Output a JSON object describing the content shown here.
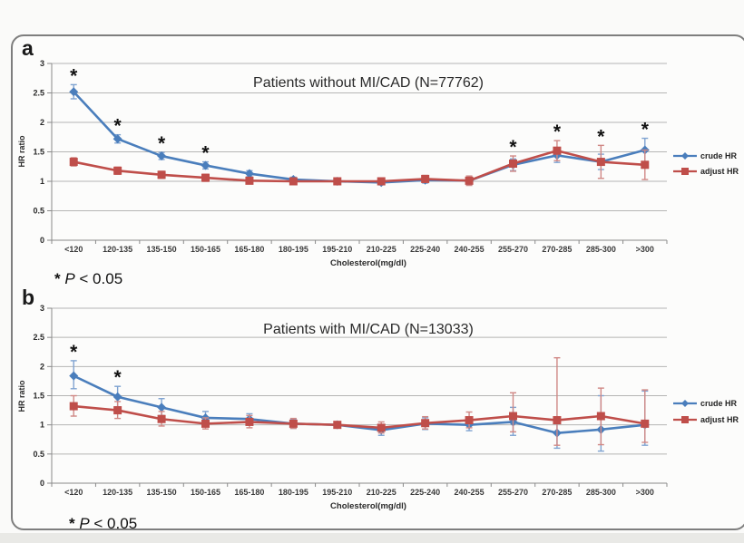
{
  "page": {
    "panel_a_label": "a",
    "panel_b_label": "b"
  },
  "colors": {
    "crude_line": "#4a7ebc",
    "crude_errbar": "#7fa3d1",
    "adjust_line": "#bf4e4a",
    "adjust_errbar": "#d08885",
    "gridline": "#b5b5b4",
    "axis": "#8a8a8a",
    "text": "#2a2a2a"
  },
  "chart_data": [
    {
      "id": "a",
      "type": "line",
      "title": "Patients without MI/CAD (N=77762)",
      "xlabel": "Cholesterol(mg/dl)",
      "ylabel": "HR ratio",
      "footnote": "* P < 0.05",
      "ylim": [
        0,
        3
      ],
      "yticks": [
        0,
        0.5,
        1,
        1.5,
        2,
        2.5,
        3
      ],
      "grid": true,
      "legend_position": "right",
      "categories": [
        "<120",
        "120-135",
        "135-150",
        "150-165",
        "165-180",
        "180-195",
        "195-210",
        "210-225",
        "225-240",
        "240-255",
        "255-270",
        "270-285",
        "285-300",
        ">300"
      ],
      "significant_categories": [
        "<120",
        "120-135",
        "135-150",
        "150-165",
        "255-270",
        "270-285",
        "285-300",
        ">300"
      ],
      "series": [
        {
          "name": "crude HR",
          "color": "#4a7ebc",
          "errbar_color": "#7fa3d1",
          "marker": "diamond",
          "values": [
            2.52,
            1.72,
            1.43,
            1.27,
            1.13,
            1.03,
            1.0,
            0.98,
            1.02,
            1.01,
            1.28,
            1.44,
            1.33,
            1.53
          ],
          "err_low": [
            2.4,
            1.65,
            1.37,
            1.21,
            1.08,
            0.99,
            0.97,
            0.94,
            0.97,
            0.95,
            1.18,
            1.32,
            1.2,
            1.33
          ],
          "err_high": [
            2.64,
            1.79,
            1.49,
            1.33,
            1.18,
            1.07,
            1.03,
            1.02,
            1.07,
            1.07,
            1.38,
            1.56,
            1.46,
            1.73
          ]
        },
        {
          "name": "adjust HR",
          "color": "#bf4e4a",
          "errbar_color": "#d08885",
          "marker": "square",
          "values": [
            1.33,
            1.18,
            1.11,
            1.06,
            1.01,
            1.0,
            1.0,
            1.0,
            1.04,
            1.01,
            1.3,
            1.52,
            1.33,
            1.28
          ],
          "err_low": [
            1.26,
            1.12,
            1.05,
            1.0,
            0.96,
            0.95,
            0.96,
            0.95,
            0.98,
            0.93,
            1.17,
            1.35,
            1.05,
            1.03
          ],
          "err_high": [
            1.4,
            1.24,
            1.17,
            1.12,
            1.06,
            1.05,
            1.04,
            1.05,
            1.1,
            1.09,
            1.43,
            1.69,
            1.61,
            1.53
          ]
        }
      ]
    },
    {
      "id": "b",
      "type": "line",
      "title": "Patients with MI/CAD (N=13033)",
      "xlabel": "Cholesterol(mg/dl)",
      "ylabel": "HR ratio",
      "footnote": "* P < 0.05",
      "ylim": [
        0,
        3
      ],
      "yticks": [
        0,
        0.5,
        1,
        1.5,
        2,
        2.5,
        3
      ],
      "grid": true,
      "legend_position": "right",
      "categories": [
        "<120",
        "120-135",
        "135-150",
        "150-165",
        "165-180",
        "180-195",
        "195-210",
        "210-225",
        "225-240",
        "240-255",
        "255-270",
        "270-285",
        "285-300",
        ">300"
      ],
      "significant_categories": [
        "<120",
        "120-135"
      ],
      "series": [
        {
          "name": "crude HR",
          "color": "#4a7ebc",
          "errbar_color": "#7fa3d1",
          "marker": "diamond",
          "values": [
            1.84,
            1.48,
            1.3,
            1.12,
            1.1,
            1.02,
            1.0,
            0.91,
            1.02,
            1.0,
            1.05,
            0.86,
            0.92,
            1.0
          ],
          "err_low": [
            1.62,
            1.31,
            1.16,
            1.01,
            1.01,
            0.94,
            0.97,
            0.82,
            0.92,
            0.9,
            0.82,
            0.6,
            0.55,
            0.65
          ],
          "err_high": [
            2.1,
            1.66,
            1.45,
            1.23,
            1.19,
            1.1,
            1.03,
            1.0,
            1.12,
            1.1,
            1.3,
            1.12,
            1.5,
            1.58
          ]
        },
        {
          "name": "adjust HR",
          "color": "#bf4e4a",
          "errbar_color": "#d08885",
          "marker": "square",
          "values": [
            1.32,
            1.25,
            1.1,
            1.02,
            1.05,
            1.02,
            1.0,
            0.95,
            1.03,
            1.08,
            1.15,
            1.08,
            1.15,
            1.02
          ],
          "err_low": [
            1.15,
            1.11,
            0.98,
            0.93,
            0.95,
            0.94,
            0.97,
            0.86,
            0.93,
            0.95,
            0.88,
            0.65,
            0.66,
            0.7
          ],
          "err_high": [
            1.5,
            1.4,
            1.23,
            1.12,
            1.16,
            1.11,
            1.03,
            1.05,
            1.14,
            1.22,
            1.55,
            2.15,
            1.63,
            1.6
          ]
        }
      ]
    }
  ]
}
